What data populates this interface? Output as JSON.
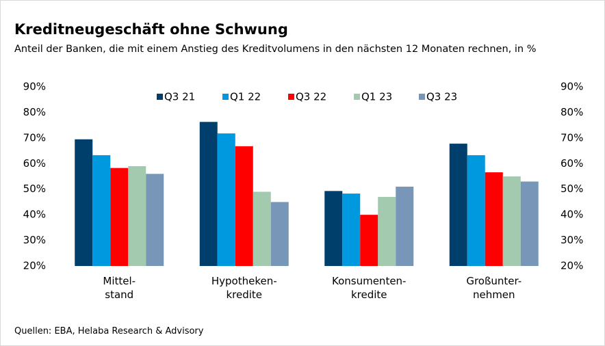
{
  "chart_data": {
    "type": "bar",
    "title": "Kreditneugeschäft ohne Schwung",
    "subtitle": "Anteil der Banken, die mit einem Anstieg des Kreditvolumens in den nächsten 12 Monaten rechnen, in %",
    "source": "Quellen: EBA, Helaba Research & Advisory",
    "categories": [
      [
        "Mittel-",
        "stand"
      ],
      [
        "Hypotheken-",
        "kredite"
      ],
      [
        "Konsumenten-",
        "kredite"
      ],
      [
        "Großunter-",
        "nehmen"
      ]
    ],
    "series": [
      {
        "name": "Q3 21",
        "color": "#003f6b",
        "values": [
          69.5,
          76.3,
          49.3,
          67.8
        ]
      },
      {
        "name": "Q1 22",
        "color": "#0099e0",
        "values": [
          63.3,
          71.8,
          48.3,
          63.3
        ]
      },
      {
        "name": "Q3 22",
        "color": "#ff0000",
        "values": [
          58.3,
          66.8,
          40,
          56.6
        ]
      },
      {
        "name": "Q1 23",
        "color": "#a3c9ae",
        "values": [
          59,
          49,
          47,
          55
        ]
      },
      {
        "name": "Q3 23",
        "color": "#7897b8",
        "values": [
          56,
          45,
          51,
          53
        ]
      }
    ],
    "ylim": [
      20,
      90
    ],
    "yticks": [
      {
        "value": 20,
        "label": "20%"
      },
      {
        "value": 30,
        "label": "30%"
      },
      {
        "value": 40,
        "label": "40%"
      },
      {
        "value": 50,
        "label": "50%"
      },
      {
        "value": 60,
        "label": "60%"
      },
      {
        "value": 70,
        "label": "70%"
      },
      {
        "value": 80,
        "label": "80%"
      },
      {
        "value": 90,
        "label": "90%"
      }
    ],
    "y2lim": [
      20,
      90
    ],
    "y2ticks": [
      {
        "value": 20,
        "label": "20%"
      },
      {
        "value": 30,
        "label": "30%"
      },
      {
        "value": 40,
        "label": "40%"
      },
      {
        "value": 50,
        "label": "50%"
      },
      {
        "value": 60,
        "label": "60%"
      },
      {
        "value": 70,
        "label": "70%"
      },
      {
        "value": 80,
        "label": "80%"
      },
      {
        "value": 90,
        "label": "90%"
      }
    ],
    "legend": "top",
    "grid": false
  }
}
